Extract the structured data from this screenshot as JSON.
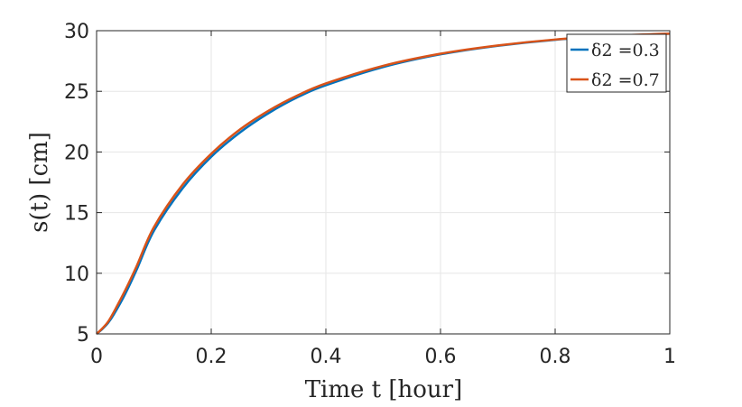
{
  "chart_data": {
    "type": "line",
    "title": "",
    "xlabel": "Time t [hour]",
    "ylabel": "s(t) [cm]",
    "xlim": [
      0,
      1
    ],
    "ylim": [
      5,
      30
    ],
    "xticks": [
      "0",
      "0.2",
      "0.4",
      "0.6",
      "0.8",
      "1"
    ],
    "yticks": [
      "5",
      "10",
      "15",
      "20",
      "25",
      "30"
    ],
    "grid": true,
    "legend_position": "top-right",
    "x": [
      0,
      0.01,
      0.02,
      0.03,
      0.05,
      0.07,
      0.1,
      0.15,
      0.2,
      0.25,
      0.3,
      0.35,
      0.4,
      0.5,
      0.6,
      0.7,
      0.8,
      0.9,
      1.0
    ],
    "series": [
      {
        "name": "δ2 =0.3",
        "color": "#0072bd",
        "values": [
          5.0,
          5.4,
          5.9,
          6.6,
          8.3,
          10.3,
          13.5,
          17.0,
          19.6,
          21.6,
          23.2,
          24.5,
          25.5,
          27.0,
          28.05,
          28.75,
          29.25,
          29.55,
          29.75
        ]
      },
      {
        "name": "δ2 =0.7",
        "color": "#d95319",
        "values": [
          5.0,
          5.45,
          6.0,
          6.8,
          8.6,
          10.6,
          13.8,
          17.3,
          19.85,
          21.85,
          23.4,
          24.65,
          25.65,
          27.1,
          28.1,
          28.78,
          29.27,
          29.57,
          29.76
        ]
      }
    ]
  }
}
